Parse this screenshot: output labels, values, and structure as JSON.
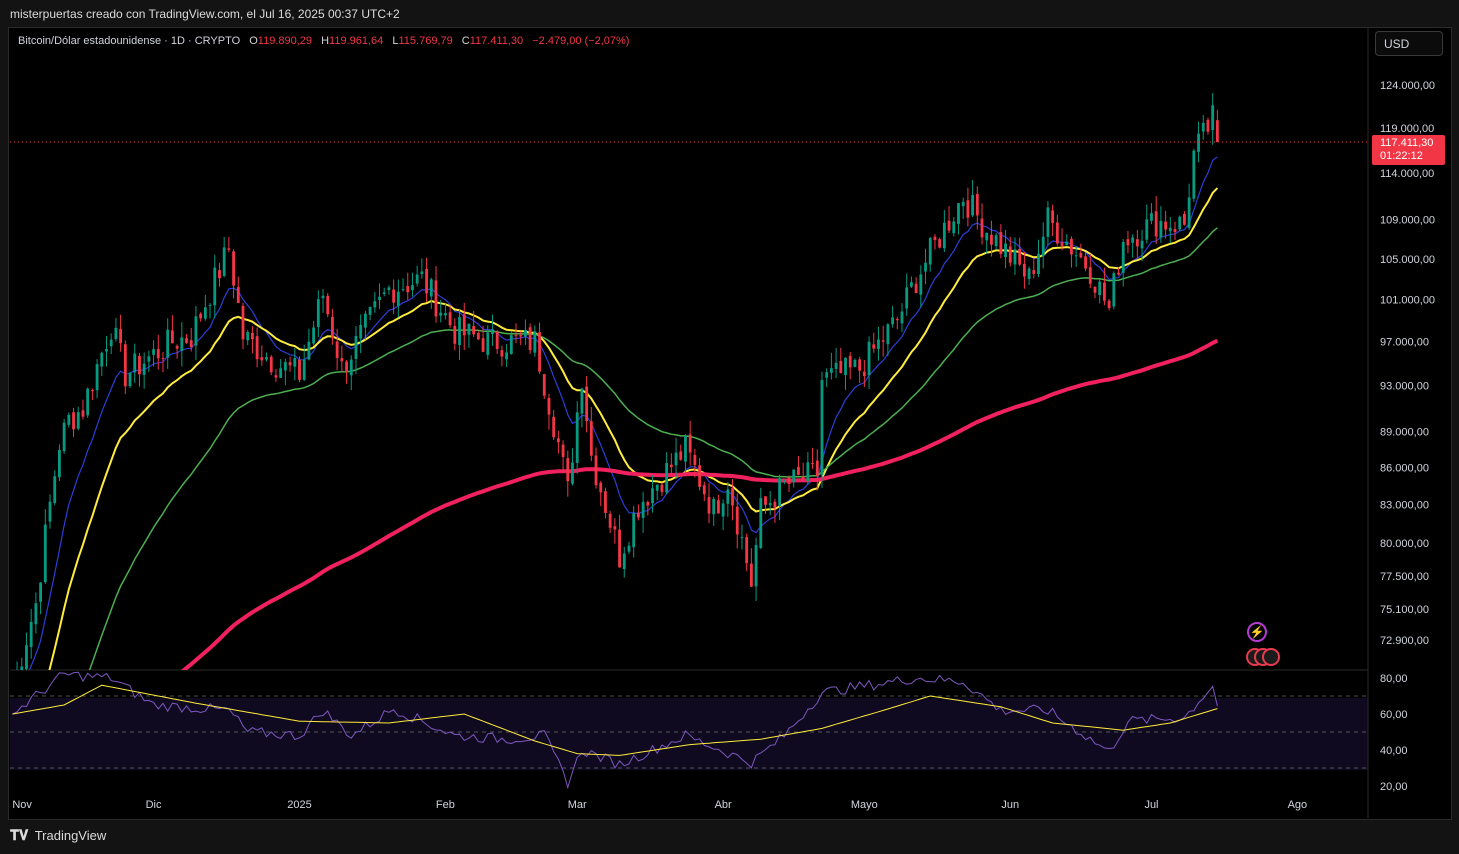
{
  "caption": "misterpuertas creado con TradingView.com, el Jul 16, 2025 00:37 UTC+2",
  "legend": {
    "symbol": "Bitcoin/Dólar estadounidense · 1D · CRYPTO",
    "o_label": "O",
    "o_value": "119.890,29",
    "h_label": "H",
    "h_value": "119.961,64",
    "l_label": "L",
    "l_value": "115.769,79",
    "c_label": "C",
    "c_value": "117.411,30",
    "change": "−2.479,00 (−2,07%)"
  },
  "currency_button": "USD",
  "last_price": {
    "price": "117.411,30",
    "countdown": "01:22:12"
  },
  "footer": {
    "brand": "TradingView",
    "logo": "tradingview-logo-icon"
  },
  "colors": {
    "up": "#089981",
    "down": "#f23645",
    "ema_fast": "#2b3fd8",
    "ema_mid": "#ffeb3b",
    "ema_slow": "#4caf50",
    "ema_long": "#f0215e",
    "rsi": "#7e57c2"
  },
  "chart_data": [
    {
      "type": "candlestick",
      "x_labels": [
        "Nov",
        "Dic",
        "2025",
        "Feb",
        "Mar",
        "Abr",
        "Mayo",
        "Jun",
        "Jul",
        "Ago"
      ],
      "y_ticks": [
        "124.000,00",
        "119.000,00",
        "114.000,00",
        "109.000,00",
        "105.000,00",
        "101.000,00",
        "97.000,00",
        "93.000,00",
        "89.000,00",
        "86.000,00",
        "83.000,00",
        "80.000,00",
        "77.500,00",
        "75.100,00",
        "72.900,00"
      ],
      "y_tick_values": [
        124000,
        119000,
        114000,
        109000,
        105000,
        101000,
        97000,
        93000,
        89000,
        86000,
        83000,
        80000,
        77500,
        75100,
        72900
      ],
      "ylim": [
        70000,
        127000
      ],
      "scale": "log",
      "close_trajectory": [
        [
          "Nov 1",
          69500
        ],
        [
          "Nov 6",
          75500
        ],
        [
          "Nov 11",
          88000
        ],
        [
          "Nov 13",
          90000
        ],
        [
          "Nov 16",
          91000
        ],
        [
          "Nov 22",
          98500
        ],
        [
          "Nov 25",
          94000
        ],
        [
          "Dic 5",
          97000
        ],
        [
          "Dic 9",
          97500
        ],
        [
          "Dic 17",
          106000
        ],
        [
          "Dic 20",
          97500
        ],
        [
          "Dic 27",
          95000
        ],
        [
          "Ene 1",
          94000
        ],
        [
          "Ene 6",
          101500
        ],
        [
          "Ene 10",
          94500
        ],
        [
          "Ene 20",
          102000
        ],
        [
          "Ene 27",
          103000
        ],
        [
          "Feb 3",
          98000
        ],
        [
          "Feb 10",
          97000
        ],
        [
          "Feb 20",
          97000
        ],
        [
          "Feb 25",
          88000
        ],
        [
          "Feb 27",
          84000
        ],
        [
          "Mar 2",
          94000
        ],
        [
          "Mar 4",
          87000
        ],
        [
          "Mar 10",
          79000
        ],
        [
          "Mar 14",
          83000
        ],
        [
          "Mar 24",
          87500
        ],
        [
          "Mar 30",
          82500
        ],
        [
          "Abr 2",
          85000
        ],
        [
          "Abr 7",
          77000
        ],
        [
          "Abr 9",
          82500
        ],
        [
          "Abr 14",
          84500
        ],
        [
          "Abr 21",
          85500
        ],
        [
          "Abr 22",
          93500
        ],
        [
          "Abr 30",
          94500
        ],
        [
          "May 8",
          99000
        ],
        [
          "May 12",
          103000
        ],
        [
          "May 22",
          111500
        ],
        [
          "May 27",
          108000
        ],
        [
          "Jun 5",
          103000
        ],
        [
          "Jun 9",
          109000
        ],
        [
          "Jun 18",
          104000
        ],
        [
          "Jun 22",
          100000
        ],
        [
          "Jun 25",
          107000
        ],
        [
          "Jul 2",
          108800
        ],
        [
          "Jul 8",
          108500
        ],
        [
          "Jul 10",
          116000
        ],
        [
          "Jul 14",
          120000
        ],
        [
          "Jul 15",
          117411
        ]
      ],
      "series": [
        {
          "color_key": "ema_fast"
        },
        {
          "color_key": "ema_mid"
        },
        {
          "color_key": "ema_slow"
        },
        {
          "color_key": "ema_long"
        }
      ],
      "last_close": 117411.3,
      "grid": false
    },
    {
      "type": "line",
      "y_ticks": [
        "80,00",
        "60,00",
        "40,00",
        "20,00"
      ],
      "y_tick_values": [
        80,
        60,
        40,
        20
      ],
      "ylim": [
        15,
        85
      ],
      "band": [
        30,
        70
      ],
      "mid": 50,
      "rsi_trajectory": [
        [
          "Nov 1",
          60
        ],
        [
          "Nov 12",
          82
        ],
        [
          "Nov 22",
          80
        ],
        [
          "Dic 1",
          65
        ],
        [
          "Dic 17",
          62
        ],
        [
          "Dic 21",
          50
        ],
        [
          "Ene 1",
          48
        ],
        [
          "Ene 6",
          62
        ],
        [
          "Ene 12",
          48
        ],
        [
          "Ene 21",
          63
        ],
        [
          "Feb 3",
          48
        ],
        [
          "Feb 14",
          46
        ],
        [
          "Feb 22",
          48
        ],
        [
          "Feb 27",
          22
        ],
        [
          "Mar 2",
          40
        ],
        [
          "Mar 10",
          32
        ],
        [
          "Mar 24",
          48
        ],
        [
          "Abr 7",
          33
        ],
        [
          "Abr 14",
          48
        ],
        [
          "Abr 22",
          72
        ],
        [
          "May 12",
          80
        ],
        [
          "May 22",
          78
        ],
        [
          "May 30",
          62
        ],
        [
          "Jun 9",
          62
        ],
        [
          "Jun 22",
          39
        ],
        [
          "Jun 26",
          56
        ],
        [
          "Jul 8",
          58
        ],
        [
          "Jul 14",
          76
        ],
        [
          "Jul 15",
          64
        ]
      ],
      "signal_trajectory": [
        [
          "Nov 1",
          60
        ],
        [
          "Nov 12",
          65
        ],
        [
          "Nov 20",
          76
        ],
        [
          "Dic 10",
          66
        ],
        [
          "Ene 1",
          56
        ],
        [
          "Ene 20",
          55
        ],
        [
          "Feb 5",
          60
        ],
        [
          "Feb 20",
          45
        ],
        [
          "Mar 1",
          38
        ],
        [
          "Mar 10",
          37
        ],
        [
          "Mar 25",
          43
        ],
        [
          "Abr 9",
          46
        ],
        [
          "Abr 22",
          52
        ],
        [
          "May 5",
          62
        ],
        [
          "May 15",
          70
        ],
        [
          "May 30",
          64
        ],
        [
          "Jun 10",
          55
        ],
        [
          "Jun 25",
          51
        ],
        [
          "Jul 5",
          55
        ],
        [
          "Jul 15",
          63
        ]
      ],
      "series": [
        {
          "color_key": "rsi"
        },
        {
          "color_key": "ema_mid"
        }
      ]
    }
  ]
}
